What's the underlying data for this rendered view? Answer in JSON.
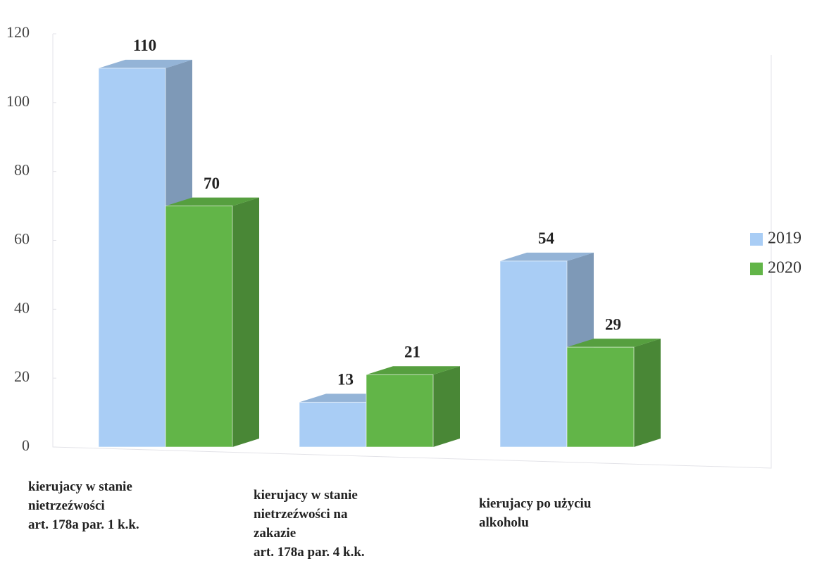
{
  "chart_data": {
    "type": "bar3d",
    "categories": [
      "kierujacy w stanie\nnietrzeźwości\nart. 178a par. 1 k.k.",
      "kierujacy w stanie\nnietrzeźwości na\nzakazie\nart. 178a par. 4 k.k.",
      "kierujacy po użyciu\nalkoholu"
    ],
    "series": [
      {
        "name": "2019",
        "color": "#a9cdf5",
        "values": [
          110,
          13,
          54
        ]
      },
      {
        "name": "2020",
        "color": "#62b548",
        "values": [
          70,
          21,
          29
        ]
      }
    ],
    "ylim": [
      0,
      120
    ],
    "yticks": [
      0,
      20,
      40,
      60,
      80,
      100,
      120
    ],
    "legend": "right"
  }
}
